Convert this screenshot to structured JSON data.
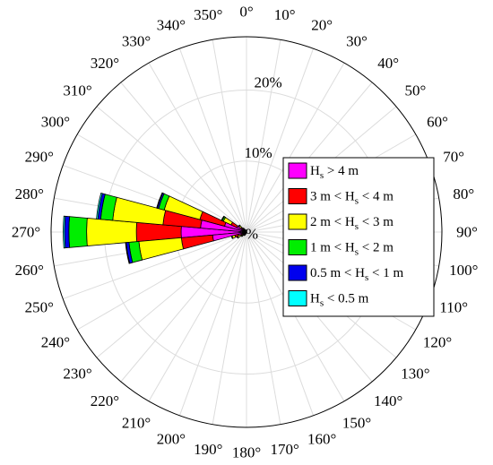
{
  "chart_data": {
    "type": "polar-stacked-bar",
    "title": "",
    "direction_labels": [
      "0°",
      "10°",
      "20°",
      "30°",
      "40°",
      "50°",
      "60°",
      "70°",
      "80°",
      "90°",
      "100°",
      "110°",
      "120°",
      "130°",
      "140°",
      "150°",
      "160°",
      "170°",
      "180°",
      "190°",
      "200°",
      "210°",
      "220°",
      "230°",
      "240°",
      "250°",
      "260°",
      "270°",
      "280°",
      "290°",
      "300°",
      "310°",
      "320°",
      "330°",
      "340°",
      "350°"
    ],
    "radial_ticks": [
      {
        "value": 0,
        "label": "%"
      },
      {
        "value": 10,
        "label": "10%"
      },
      {
        "value": 20,
        "label": "20%"
      }
    ],
    "rmax": 27.5,
    "bin_width_deg": 10,
    "categories": [
      {
        "name": "H_s > 4 m",
        "label": [
          {
            "t": "H"
          },
          {
            "t": "s",
            "sub": true
          },
          {
            "t": " > 4 m"
          }
        ],
        "color": "#ff00ff"
      },
      {
        "name": "3 m < H_s < 4 m",
        "label": [
          {
            "t": "3 m < H"
          },
          {
            "t": "s",
            "sub": true
          },
          {
            "t": " < 4 m"
          }
        ],
        "color": "#ff0000"
      },
      {
        "name": "2 m < H_s < 3 m",
        "label": [
          {
            "t": "2 m < H"
          },
          {
            "t": "s",
            "sub": true
          },
          {
            "t": " < 3 m"
          }
        ],
        "color": "#ffff00"
      },
      {
        "name": "1 m < H_s < 2 m",
        "label": [
          {
            "t": "1 m < H"
          },
          {
            "t": "s",
            "sub": true
          },
          {
            "t": " < 2 m"
          }
        ],
        "color": "#00ee00"
      },
      {
        "name": "0.5 m < H_s < 1 m",
        "label": [
          {
            "t": "0.5 m < H"
          },
          {
            "t": "s",
            "sub": true
          },
          {
            "t": " < 1 m"
          }
        ],
        "color": "#0000ee"
      },
      {
        "name": "H_s < 0.5 m",
        "label": [
          {
            "t": "H"
          },
          {
            "t": "s",
            "sub": true
          },
          {
            "t": " < 0.5 m"
          }
        ],
        "color": "#00ffff"
      }
    ],
    "series_note": "each sector: cumulative percentages from centre outward: [<0.5, 0.5-1, 1-2, 2-3, 3-4, >4]",
    "sectors": [
      {
        "direction": 270,
        "cumulative": [
          9.2,
          15.5,
          22.5,
          25.0,
          25.6,
          25.8
        ]
      },
      {
        "direction": 280,
        "cumulative": [
          6.5,
          11.8,
          18.9,
          20.6,
          21.0,
          21.2
        ]
      },
      {
        "direction": 260,
        "cumulative": [
          4.8,
          9.2,
          15.2,
          16.6,
          17.0,
          17.1
        ]
      },
      {
        "direction": 290,
        "cumulative": [
          3.2,
          6.8,
          12.0,
          12.8,
          13.0,
          13.1
        ]
      },
      {
        "direction": 250,
        "cumulative": [
          1.2,
          1.7,
          2.1,
          2.2,
          2.2,
          2.2
        ]
      },
      {
        "direction": 300,
        "cumulative": [
          1.5,
          2.4,
          3.6,
          3.8,
          3.9,
          3.9
        ]
      },
      {
        "direction": 310,
        "cumulative": [
          0.5,
          0.9,
          1.3,
          1.4,
          1.4,
          1.4
        ]
      },
      {
        "direction": 240,
        "cumulative": [
          0.5,
          0.9,
          1.4,
          1.5,
          1.5,
          1.5
        ]
      },
      {
        "direction": 230,
        "cumulative": [
          0.3,
          0.6,
          0.8,
          0.9,
          0.9,
          0.9
        ]
      },
      {
        "direction": 220,
        "cumulative": [
          0.2,
          0.4,
          0.6,
          0.6,
          0.6,
          0.6
        ]
      },
      {
        "direction": 210,
        "cumulative": [
          0.2,
          0.3,
          0.5,
          0.5,
          0.5,
          0.5
        ]
      },
      {
        "direction": 320,
        "cumulative": [
          0.3,
          0.5,
          0.7,
          0.7,
          0.7,
          0.7
        ]
      },
      {
        "direction": 200,
        "cumulative": [
          0.1,
          0.2,
          0.3,
          0.3,
          0.3,
          0.3
        ]
      },
      {
        "direction": 330,
        "cumulative": [
          0.2,
          0.3,
          0.4,
          0.4,
          0.4,
          0.4
        ]
      },
      {
        "direction": 340,
        "cumulative": [
          0.1,
          0.2,
          0.3,
          0.3,
          0.3,
          0.3
        ]
      }
    ],
    "legend_position": "right",
    "grid": true
  }
}
